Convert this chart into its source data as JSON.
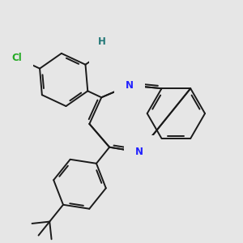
{
  "background_color": "#e6e6e6",
  "bond_color": "#1a1a1a",
  "bond_width": 1.4,
  "N_color": "#2222ff",
  "O_color": "#ff2200",
  "Cl_color": "#22aa22",
  "H_color": "#227777",
  "font_size": 8.5,
  "fig_width": 3.0,
  "fig_height": 3.0,
  "dpi": 100,
  "xlim": [
    0,
    3
  ],
  "ylim": [
    0,
    3
  ]
}
